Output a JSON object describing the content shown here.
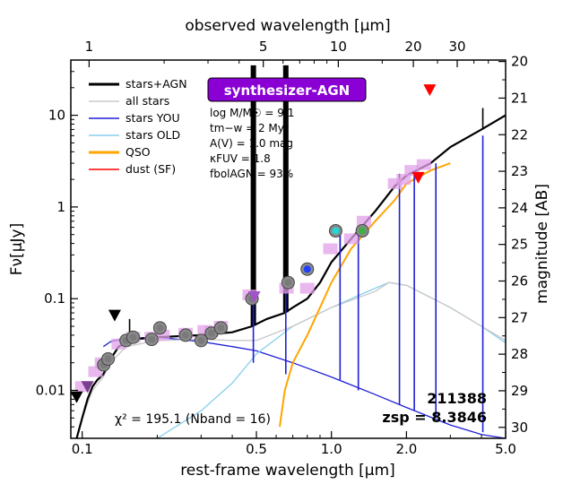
{
  "chart_data": {
    "type": "line",
    "xlabel": "rest-frame wavelength [μm]",
    "x2label": "observed wavelength [μm]",
    "ylabel": "Fν[μJy]",
    "y2label": "magnitude [AB]",
    "xlim": [
      0.09,
      5.0
    ],
    "ylim": [
      0.003,
      40
    ],
    "x_ticks": [
      {
        "v": 0.1,
        "label": "0.1"
      },
      {
        "v": 0.5,
        "label": "0.5"
      },
      {
        "v": 1.0,
        "label": "1.0"
      },
      {
        "v": 2.0,
        "label": "2.0"
      },
      {
        "v": 5.0,
        "label": "5.0"
      }
    ],
    "x2_ticks": [
      {
        "v": 1,
        "label": "1"
      },
      {
        "v": 5,
        "label": "5"
      },
      {
        "v": 10,
        "label": "10"
      },
      {
        "v": 20,
        "label": "20"
      },
      {
        "v": 30,
        "label": "30"
      }
    ],
    "y_ticks": [
      {
        "v": 0.01,
        "label": "0.01"
      },
      {
        "v": 0.1,
        "label": "0.1"
      },
      {
        "v": 1,
        "label": "1"
      },
      {
        "v": 10,
        "label": "10"
      }
    ],
    "y2_ticks": [
      {
        "v": 20,
        "label": "20"
      },
      {
        "v": 21,
        "label": "21"
      },
      {
        "v": 22,
        "label": "22"
      },
      {
        "v": 23,
        "label": "23"
      },
      {
        "v": 24,
        "label": "24"
      },
      {
        "v": 25,
        "label": "25"
      },
      {
        "v": 26,
        "label": "26"
      },
      {
        "v": 27,
        "label": "27"
      },
      {
        "v": 28,
        "label": "28"
      },
      {
        "v": 29,
        "label": "29"
      },
      {
        "v": 30,
        "label": "30"
      }
    ],
    "redshift": 8.3846,
    "badge": "synthesizer-AGN",
    "legend": [
      {
        "name": "stars+AGN",
        "color": "#000000"
      },
      {
        "name": "all stars",
        "color": "#c8c8c8"
      },
      {
        "name": "stars YOU",
        "color": "#1f1fd6"
      },
      {
        "name": "stars OLD",
        "color": "#87ceeb"
      },
      {
        "name": "QSO",
        "color": "#ffa500"
      },
      {
        "name": "dust (SF)",
        "color": "#ff0000"
      }
    ],
    "params": [
      {
        "name": "log M/M☉",
        "value": "9.1"
      },
      {
        "name": "tm−w",
        "value": "2 Myr"
      },
      {
        "name": "A(V)",
        "value": "1.0 mag"
      },
      {
        "name": "κFUV",
        "value": "1.8"
      },
      {
        "name": "fbolAGN",
        "value": "93%"
      }
    ],
    "param_lines": [
      "log M/M☉ = 9.1",
      "tm−w = 2 Myr",
      "A(V) = 1.0 mag",
      "κFUV = 1.8",
      "fbolAGN = 93%"
    ],
    "chi2_text": "χ² = 195.1 (Nband = 16)",
    "object_id": "211388",
    "zsp_text": "zsp = 8.3846",
    "series": [
      {
        "name": "stars+AGN",
        "color": "#000000",
        "x": [
          0.095,
          0.1,
          0.105,
          0.11,
          0.115,
          0.1216,
          0.13,
          0.14,
          0.16,
          0.2,
          0.3,
          0.4,
          0.48,
          0.55,
          0.65,
          0.7,
          0.8,
          0.9,
          1.0,
          1.2,
          1.5,
          1.8,
          2.0,
          2.5,
          3.0,
          4.0,
          5.0
        ],
        "y": [
          0.003,
          0.005,
          0.008,
          0.011,
          0.013,
          0.015,
          0.022,
          0.03,
          0.036,
          0.038,
          0.04,
          0.043,
          0.05,
          0.06,
          0.07,
          0.08,
          0.1,
          0.15,
          0.25,
          0.45,
          0.9,
          1.7,
          2.2,
          3.0,
          4.5,
          7.0,
          10.0
        ]
      },
      {
        "name": "all stars",
        "color": "#c8c8c8",
        "x": [
          0.095,
          0.1,
          0.11,
          0.1216,
          0.13,
          0.15,
          0.2,
          0.3,
          0.4,
          0.5,
          0.7,
          1.0,
          1.5,
          1.7,
          2.0,
          3.0,
          4.0,
          5.0
        ],
        "y": [
          0.003,
          0.005,
          0.01,
          0.014,
          0.02,
          0.03,
          0.035,
          0.036,
          0.035,
          0.035,
          0.05,
          0.08,
          0.12,
          0.15,
          0.14,
          0.08,
          0.05,
          0.035
        ]
      },
      {
        "name": "stars YOU",
        "color": "#1f1fd6",
        "x": [
          0.1216,
          0.13,
          0.15,
          0.2,
          0.3,
          0.4,
          0.5,
          0.7,
          1.0,
          1.5,
          2.0,
          3.0,
          4.0,
          5.0
        ],
        "y": [
          0.03,
          0.034,
          0.037,
          0.038,
          0.034,
          0.03,
          0.027,
          0.02,
          0.014,
          0.009,
          0.0065,
          0.0042,
          0.0033,
          0.003
        ]
      },
      {
        "name": "stars OLD",
        "color": "#87ceeb",
        "x": [
          0.2,
          0.3,
          0.4,
          0.5,
          0.7,
          1.0,
          1.5,
          1.7,
          2.0,
          3.0,
          4.0,
          5.0
        ],
        "y": [
          0.003,
          0.006,
          0.012,
          0.025,
          0.05,
          0.08,
          0.13,
          0.15,
          0.14,
          0.08,
          0.05,
          0.033
        ]
      },
      {
        "name": "QSO",
        "color": "#ffa500",
        "x": [
          0.62,
          0.65,
          0.7,
          0.8,
          0.9,
          1.0,
          1.2,
          1.5,
          1.8,
          2.0,
          2.5,
          3.0
        ],
        "y": [
          0.004,
          0.01,
          0.02,
          0.04,
          0.08,
          0.15,
          0.35,
          0.7,
          1.2,
          1.8,
          2.5,
          3.0
        ]
      }
    ],
    "photometry": [
      {
        "x": 0.122,
        "y": 0.019,
        "kind": "gray"
      },
      {
        "x": 0.127,
        "y": 0.022,
        "kind": "gray"
      },
      {
        "x": 0.15,
        "y": 0.035,
        "kind": "gray"
      },
      {
        "x": 0.16,
        "y": 0.038,
        "kind": "gray"
      },
      {
        "x": 0.19,
        "y": 0.036,
        "kind": "gray"
      },
      {
        "x": 0.205,
        "y": 0.048,
        "kind": "gray"
      },
      {
        "x": 0.26,
        "y": 0.04,
        "kind": "gray"
      },
      {
        "x": 0.3,
        "y": 0.035,
        "kind": "gray"
      },
      {
        "x": 0.33,
        "y": 0.042,
        "kind": "gray"
      },
      {
        "x": 0.36,
        "y": 0.048,
        "kind": "gray"
      },
      {
        "x": 0.48,
        "y": 0.1,
        "kind": "gray"
      },
      {
        "x": 0.67,
        "y": 0.15,
        "kind": "gray"
      },
      {
        "x": 0.8,
        "y": 0.21,
        "kind": "blue"
      },
      {
        "x": 1.04,
        "y": 0.55,
        "kind": "cyan"
      },
      {
        "x": 1.33,
        "y": 0.55,
        "kind": "green"
      }
    ],
    "model_boxes": [
      {
        "x": 0.1,
        "y": 0.011
      },
      {
        "x": 0.113,
        "y": 0.016
      },
      {
        "x": 0.12,
        "y": 0.02
      },
      {
        "x": 0.14,
        "y": 0.032
      },
      {
        "x": 0.16,
        "y": 0.038
      },
      {
        "x": 0.19,
        "y": 0.038
      },
      {
        "x": 0.21,
        "y": 0.04
      },
      {
        "x": 0.26,
        "y": 0.042
      },
      {
        "x": 0.31,
        "y": 0.045
      },
      {
        "x": 0.33,
        "y": 0.044
      },
      {
        "x": 0.36,
        "y": 0.05
      },
      {
        "x": 0.47,
        "y": 0.11
      },
      {
        "x": 0.66,
        "y": 0.13
      },
      {
        "x": 0.8,
        "y": 0.13
      },
      {
        "x": 0.99,
        "y": 0.35
      },
      {
        "x": 1.2,
        "y": 0.45
      },
      {
        "x": 1.35,
        "y": 0.7
      },
      {
        "x": 1.8,
        "y": 1.8
      },
      {
        "x": 1.95,
        "y": 2.0
      },
      {
        "x": 2.1,
        "y": 2.5
      },
      {
        "x": 2.35,
        "y": 2.9
      }
    ],
    "upper_limits": [
      {
        "x": 0.095,
        "y": 0.0085,
        "color": "#000000"
      },
      {
        "x": 0.105,
        "y": 0.011,
        "color": "#7b3f8f"
      },
      {
        "x": 0.135,
        "y": 0.066,
        "color": "#000000"
      },
      {
        "x": 0.49,
        "y": 0.105,
        "color": "#a054c8"
      },
      {
        "x": 2.23,
        "y": 2.1,
        "color": "#ff0000"
      },
      {
        "x": 2.48,
        "y": 19.0,
        "color": "#ff0000"
      }
    ],
    "emission_lines": [
      {
        "x": 0.1549,
        "top": 0.06,
        "color": "#000000"
      },
      {
        "x": 0.375,
        "top": 0.05,
        "color": "#000000"
      },
      {
        "x": 0.4861,
        "top": 35,
        "color": "#000000"
      },
      {
        "x": 0.656,
        "top": 35,
        "color": "#000000"
      },
      {
        "x": 1.083,
        "top": 0.6,
        "color": "#000000"
      },
      {
        "x": 1.282,
        "top": 0.6,
        "color": "#000000"
      },
      {
        "x": 1.875,
        "top": 2.3,
        "color": "#000000"
      },
      {
        "x": 4.05,
        "top": 12.0,
        "color": "#000000"
      },
      {
        "x": 0.4861,
        "top": 0.12,
        "color": "#1f1fd6",
        "bottom": 0.02
      },
      {
        "x": 0.656,
        "top": 0.12,
        "color": "#1f1fd6",
        "bottom": 0.015
      },
      {
        "x": 1.083,
        "top": 0.5,
        "color": "#1f1fd6",
        "bottom": 0.013
      },
      {
        "x": 1.282,
        "top": 0.5,
        "color": "#1f1fd6",
        "bottom": 0.01
      },
      {
        "x": 1.875,
        "top": 2.0,
        "color": "#1f1fd6",
        "bottom": 0.007
      },
      {
        "x": 2.15,
        "top": 2.5,
        "color": "#1f1fd6",
        "bottom": 0.006
      },
      {
        "x": 2.625,
        "top": 3.0,
        "color": "#1f1fd6",
        "bottom": 0.005
      },
      {
        "x": 4.05,
        "top": 6.0,
        "color": "#1f1fd6",
        "bottom": 0.0035
      }
    ]
  }
}
